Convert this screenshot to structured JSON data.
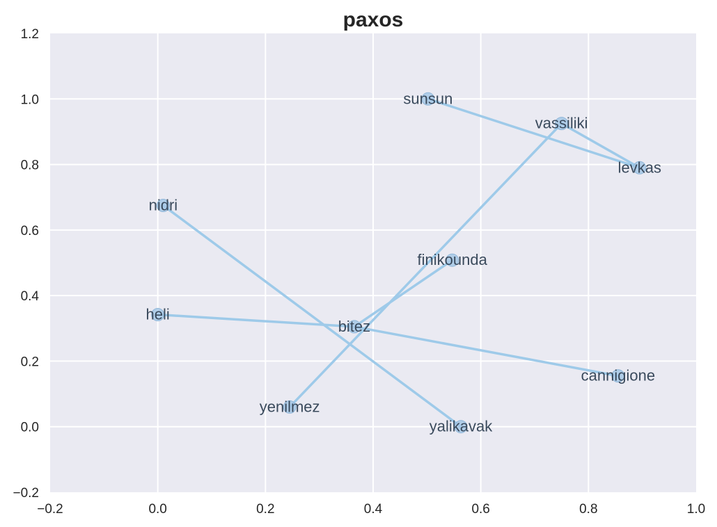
{
  "chart_data": {
    "type": "network",
    "title": "paxos",
    "xlabel": "",
    "ylabel": "",
    "xlim": [
      -0.2,
      1.0
    ],
    "ylim": [
      -0.2,
      1.2
    ],
    "xticks": [
      "−0.2",
      "0.0",
      "0.2",
      "0.4",
      "0.6",
      "0.8",
      "1.0"
    ],
    "yticks": [
      "−0.2",
      "0.0",
      "0.2",
      "0.4",
      "0.6",
      "0.8",
      "1.0",
      "1.2"
    ],
    "grid": true,
    "nodes": [
      {
        "name": "sunsun",
        "x": 0.502,
        "y": 1.0
      },
      {
        "name": "vassiliki",
        "x": 0.75,
        "y": 0.925
      },
      {
        "name": "levkas",
        "x": 0.895,
        "y": 0.79
      },
      {
        "name": "nidri",
        "x": 0.01,
        "y": 0.675
      },
      {
        "name": "finikounda",
        "x": 0.547,
        "y": 0.508
      },
      {
        "name": "heli",
        "x": 0.0,
        "y": 0.342
      },
      {
        "name": "bitez",
        "x": 0.365,
        "y": 0.305
      },
      {
        "name": "cannigione",
        "x": 0.855,
        "y": 0.155
      },
      {
        "name": "yenilmez",
        "x": 0.245,
        "y": 0.06
      },
      {
        "name": "yalikavak",
        "x": 0.563,
        "y": 0.0
      }
    ],
    "edges": [
      [
        "sunsun",
        "levkas"
      ],
      [
        "vassiliki",
        "levkas"
      ],
      [
        "vassiliki",
        "yenilmez"
      ],
      [
        "finikounda",
        "bitez"
      ],
      [
        "nidri",
        "yalikavak"
      ],
      [
        "heli",
        "bitez"
      ],
      [
        "bitez",
        "cannigione"
      ]
    ],
    "colors": {
      "background": "#eaeaf2",
      "grid": "#ffffff",
      "edge": "#9ecae9",
      "node": "#a6c8e6",
      "node_edge": "#8fb6d9",
      "label": "#3a4a5c"
    }
  }
}
